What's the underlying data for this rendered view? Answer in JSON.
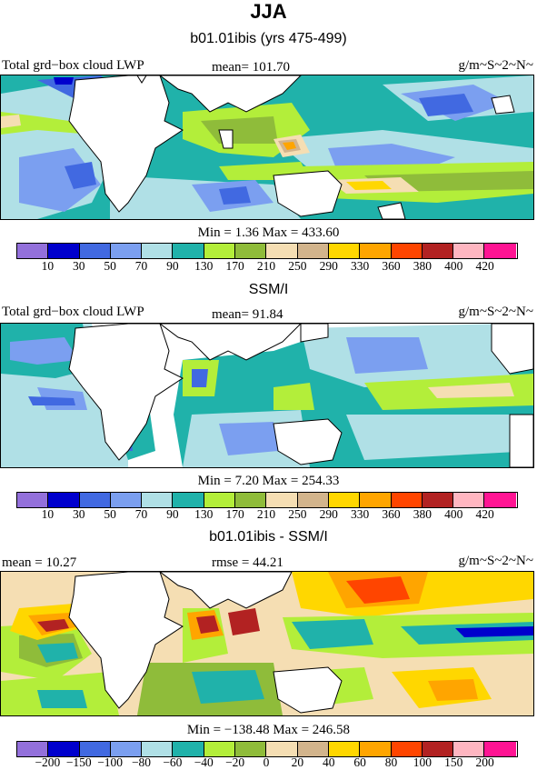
{
  "title": "JJA",
  "subtitle": "b01.01ibis (yrs 475-499)",
  "panels": [
    {
      "left_label": "Total grd−box cloud LWP",
      "mean_label": "mean= 101.70",
      "units": "g/m~S~2~N~",
      "minmax": "Min =   1.36 Max = 433.60"
    },
    {
      "title": "SSM/I",
      "left_label": "Total grd−box cloud LWP",
      "mean_label": "mean=  91.84",
      "units": "g/m~S~2~N~",
      "minmax": "Min =   7.20 Max = 254.33"
    },
    {
      "title": "b01.01ibis - SSM/I",
      "left_label": "mean =  10.27",
      "mean_label": "rmse =  44.21",
      "units": "g/m~S~2~N~",
      "minmax": "Min = −138.48 Max = 246.58"
    }
  ],
  "colorbar": {
    "colors": [
      "#9370db",
      "#0000cd",
      "#4169e1",
      "#7b9ff0",
      "#b0e0e6",
      "#20b2aa",
      "#b3ee3a",
      "#8fbc3a",
      "#f5deb3",
      "#d2b48c",
      "#ffd700",
      "#ffa500",
      "#ff4500",
      "#b22222",
      "#ffb6c1",
      "#ff1493"
    ],
    "ticks_abs": [
      "10",
      "30",
      "50",
      "70",
      "90",
      "130",
      "170",
      "210",
      "250",
      "290",
      "330",
      "360",
      "380",
      "400",
      "420"
    ],
    "ticks_diff": [
      "−200",
      "−150",
      "−100",
      "−80",
      "−60",
      "−40",
      "−20",
      "0",
      "20",
      "40",
      "60",
      "80",
      "100",
      "150",
      "200"
    ]
  }
}
